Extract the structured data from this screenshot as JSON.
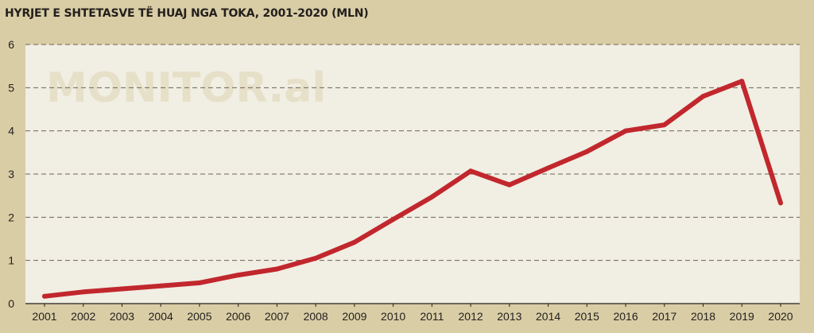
{
  "chart_data": {
    "type": "line",
    "title": "HYRJET E SHTETASVE TË HUAJ NGA TOKA, 2001-2020 (MLN)",
    "watermark": "MONITOR.al",
    "x": [
      "2001",
      "2002",
      "2003",
      "2004",
      "2005",
      "2006",
      "2007",
      "2008",
      "2009",
      "2010",
      "2011",
      "2012",
      "2013",
      "2014",
      "2015",
      "2016",
      "2017",
      "2018",
      "2019",
      "2020"
    ],
    "series": [
      {
        "values": [
          0.17,
          0.27,
          0.34,
          0.41,
          0.48,
          0.66,
          0.8,
          1.05,
          1.42,
          1.95,
          2.47,
          3.07,
          2.75,
          3.14,
          3.52,
          4.0,
          4.14,
          4.8,
          5.15,
          2.33
        ]
      }
    ],
    "yticks": [
      "0",
      "1",
      "2",
      "3",
      "4",
      "5",
      "6"
    ],
    "ylim": [
      0,
      6
    ],
    "grid": true,
    "line_color": "#c1272d"
  }
}
